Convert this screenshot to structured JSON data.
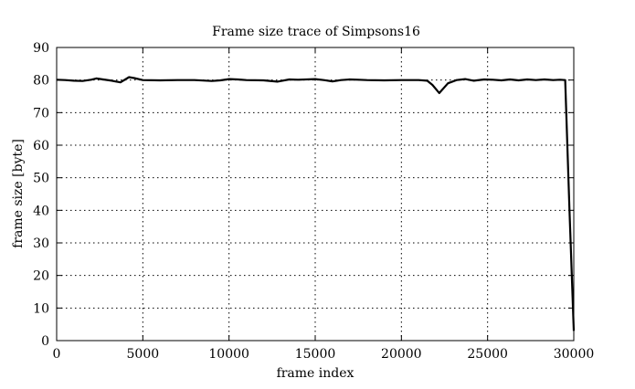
{
  "chart_data": {
    "type": "line",
    "title": "Frame size trace of Simpsons16",
    "xlabel": "frame index",
    "ylabel": "frame size [byte]",
    "xlim": [
      0,
      30000
    ],
    "ylim": [
      0,
      90
    ],
    "xticks": [
      0,
      5000,
      10000,
      15000,
      20000,
      25000,
      30000
    ],
    "yticks": [
      0,
      10,
      20,
      30,
      40,
      50,
      60,
      70,
      80,
      90
    ],
    "grid": true,
    "series": [
      {
        "x": [
          0,
          500,
          1000,
          1500,
          2000,
          2300,
          2700,
          3200,
          3700,
          4200,
          4500,
          5000,
          6000,
          7000,
          8000,
          9000,
          9500,
          10000,
          10500,
          11000,
          12000,
          12800,
          13500,
          14000,
          15000,
          15500,
          16000,
          16500,
          17000,
          17500,
          18000,
          19000,
          20000,
          21000,
          21500,
          21800,
          22200,
          22700,
          23200,
          23700,
          24200,
          24800,
          25300,
          25800,
          26300,
          26800,
          27300,
          27800,
          28300,
          28800,
          29200,
          29500,
          29750,
          30000
        ],
        "y": [
          80.1,
          80.0,
          79.8,
          79.7,
          80.1,
          80.5,
          80.2,
          79.8,
          79.3,
          80.9,
          80.6,
          80.0,
          79.9,
          80.0,
          80.0,
          79.7,
          79.9,
          80.3,
          80.2,
          80.0,
          79.9,
          79.5,
          80.2,
          80.1,
          80.3,
          80.0,
          79.6,
          80.0,
          80.2,
          80.1,
          80.0,
          79.9,
          80.0,
          80.0,
          79.8,
          78.5,
          76.0,
          79.0,
          80.0,
          80.3,
          79.8,
          80.2,
          80.1,
          79.9,
          80.2,
          79.9,
          80.2,
          80.0,
          80.2,
          80.0,
          80.1,
          80.0,
          40.0,
          3.0
        ]
      }
    ]
  }
}
